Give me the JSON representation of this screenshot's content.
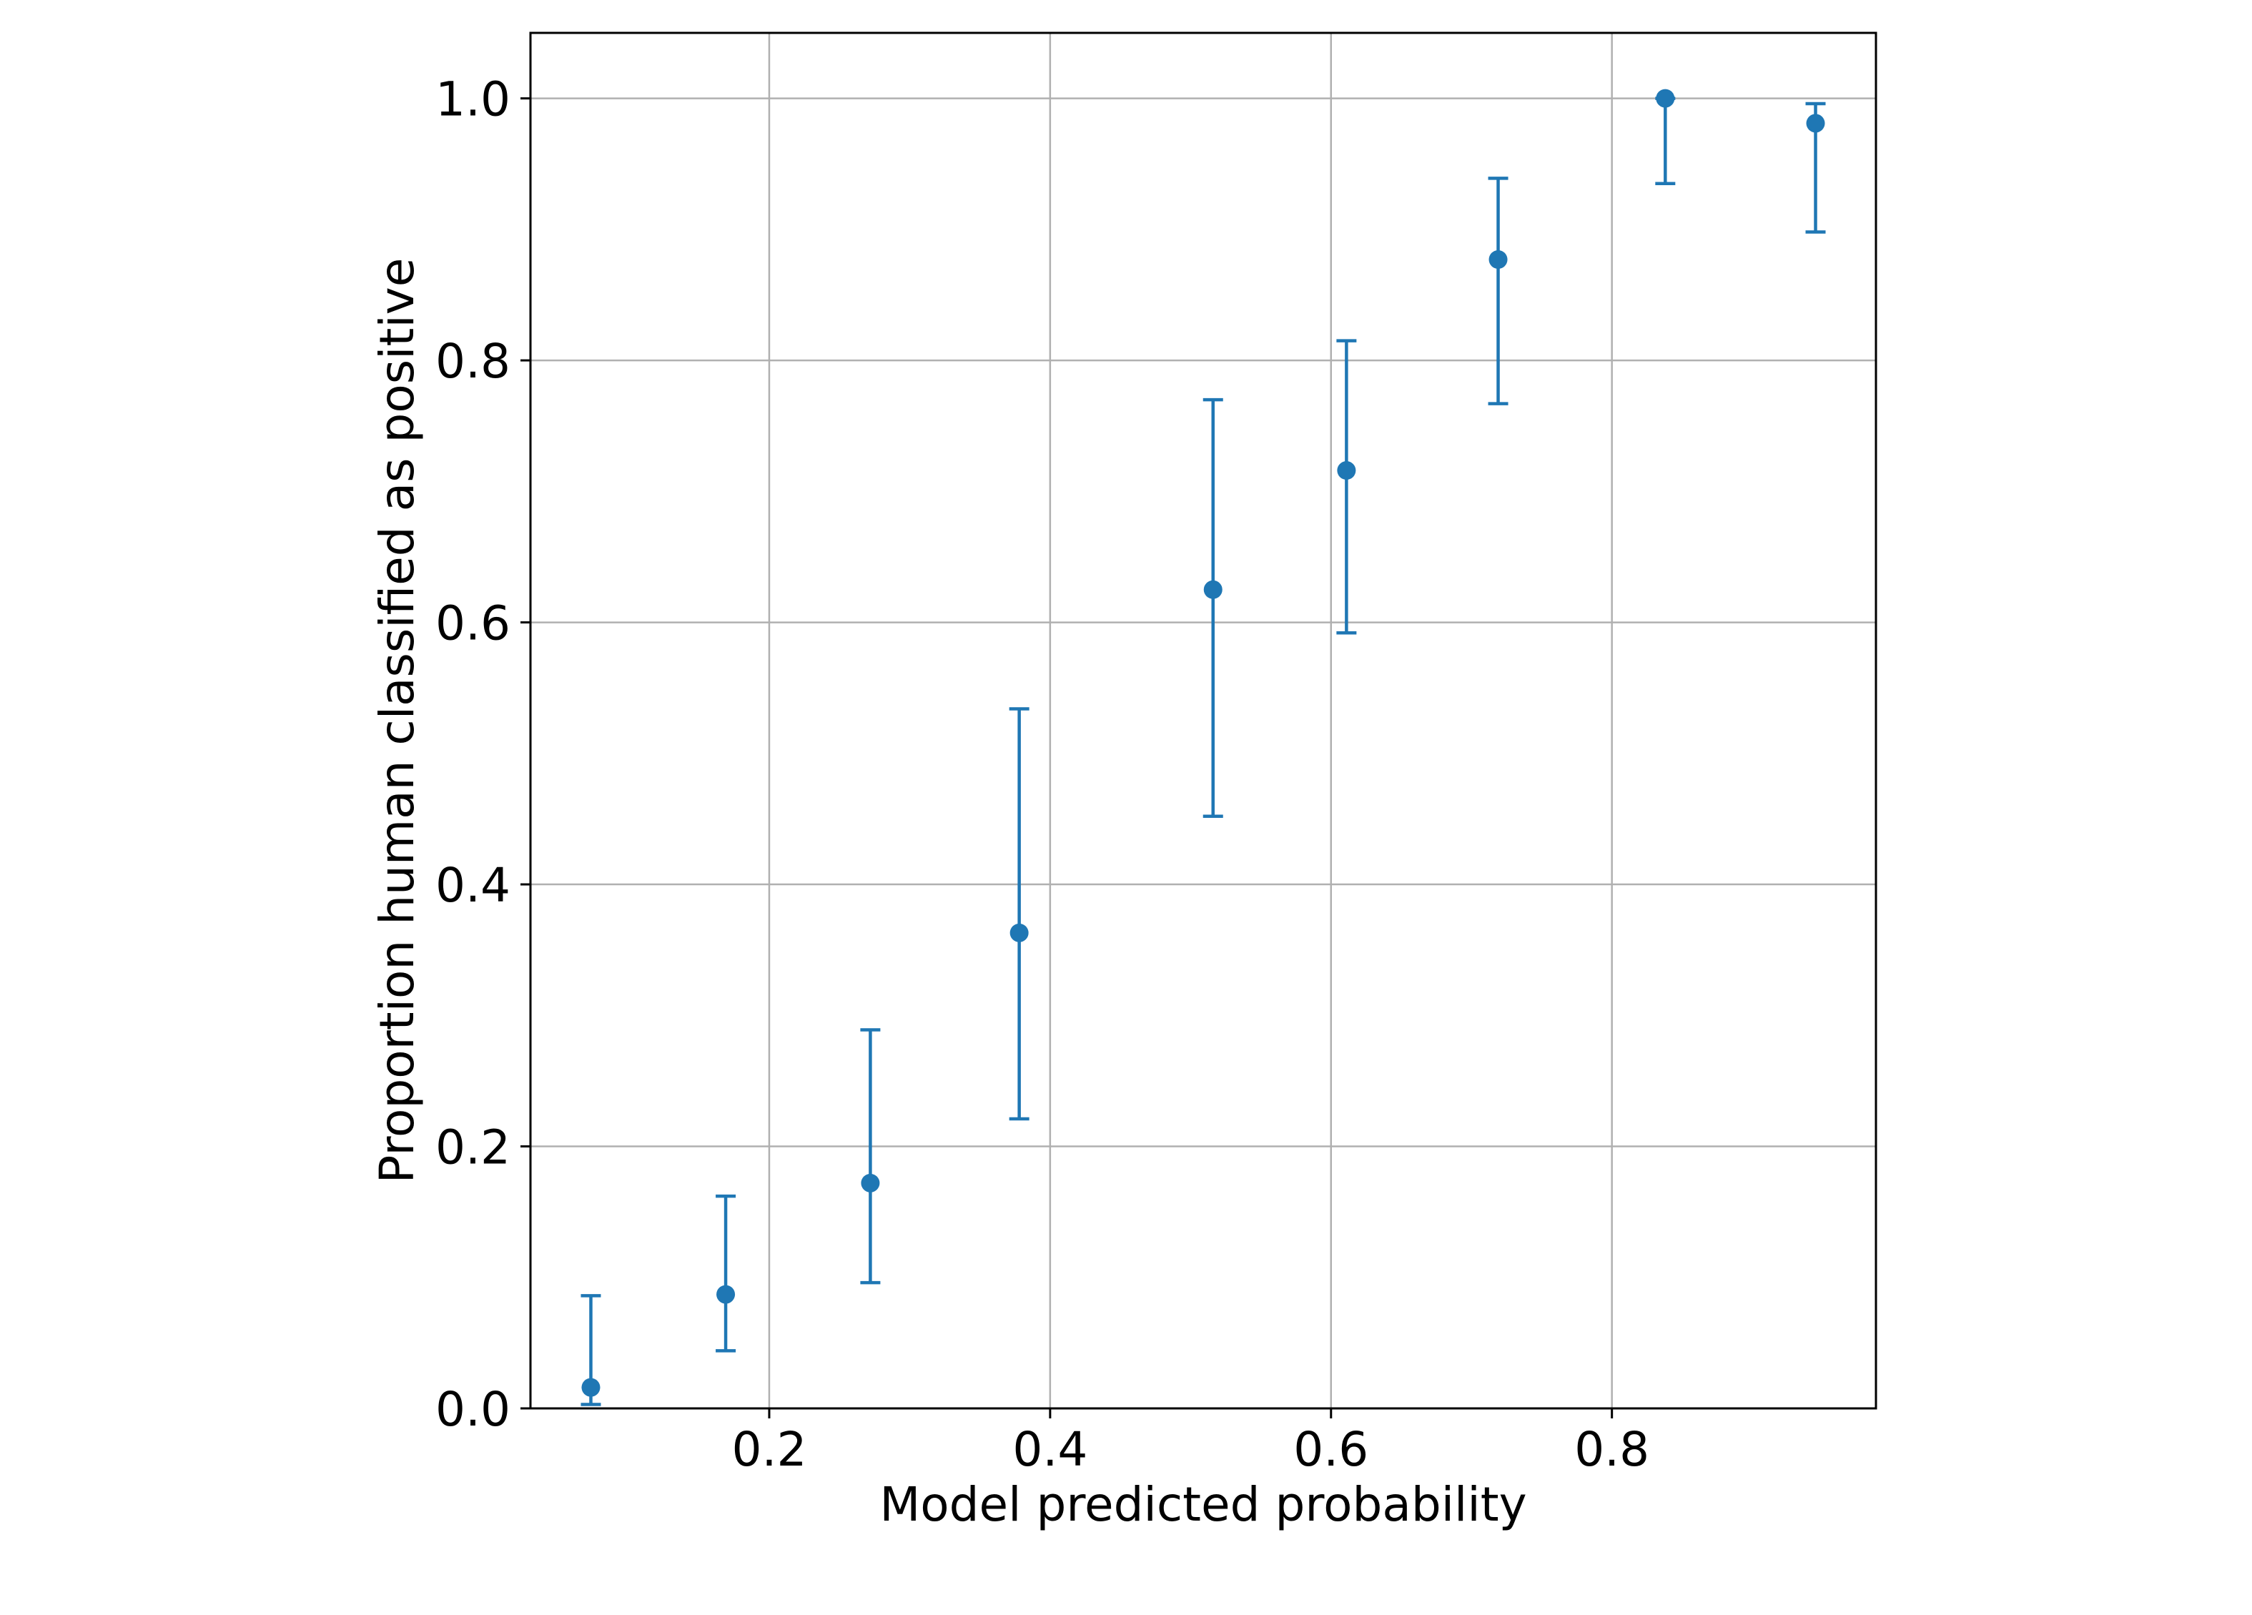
{
  "chart_data": {
    "type": "scatter",
    "subtype": "errorbar",
    "title": "",
    "xlabel": "Model predicted probability",
    "ylabel": "Proportion human classified as positive",
    "xlim": [
      0.03,
      0.988
    ],
    "ylim": [
      0.0,
      1.05
    ],
    "xticks": [
      0.2,
      0.4,
      0.6,
      0.8
    ],
    "xtick_labels": [
      "0.2",
      "0.4",
      "0.6",
      "0.8"
    ],
    "yticks": [
      0.0,
      0.2,
      0.4,
      0.6,
      0.8,
      1.0
    ],
    "ytick_labels": [
      "0.0",
      "0.2",
      "0.4",
      "0.6",
      "0.8",
      "1.0"
    ],
    "grid": true,
    "color": "#1f77b4",
    "points": [
      {
        "x": 0.073,
        "y": 0.016,
        "lower": 0.003,
        "upper": 0.086
      },
      {
        "x": 0.169,
        "y": 0.087,
        "lower": 0.044,
        "upper": 0.162
      },
      {
        "x": 0.272,
        "y": 0.172,
        "lower": 0.096,
        "upper": 0.289
      },
      {
        "x": 0.378,
        "y": 0.363,
        "lower": 0.221,
        "upper": 0.534
      },
      {
        "x": 0.516,
        "y": 0.625,
        "lower": 0.452,
        "upper": 0.77
      },
      {
        "x": 0.611,
        "y": 0.716,
        "lower": 0.592,
        "upper": 0.815
      },
      {
        "x": 0.719,
        "y": 0.877,
        "lower": 0.767,
        "upper": 0.939
      },
      {
        "x": 0.838,
        "y": 1.0,
        "lower": 0.935,
        "upper": 1.0
      },
      {
        "x": 0.945,
        "y": 0.981,
        "lower": 0.898,
        "upper": 0.996
      }
    ]
  }
}
